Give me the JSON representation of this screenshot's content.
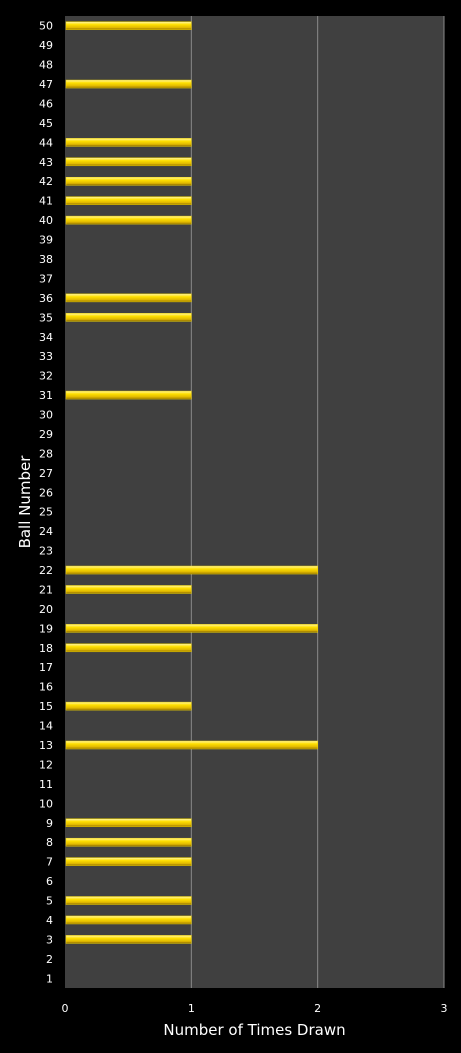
{
  "chart_data": {
    "type": "bar",
    "orientation": "horizontal",
    "xlabel": "Number of Times Drawn",
    "ylabel": "Ball Number",
    "xlim": [
      0,
      3
    ],
    "xticks": [
      "0",
      "1",
      "2",
      "3"
    ],
    "grid": "vertical",
    "legend": "none",
    "colors": {
      "background": "#000000",
      "plot_area": "#404040",
      "bar": "#f2d600",
      "gridline": "#8a8a8a",
      "text": "#ffffff"
    },
    "categories": [
      "1",
      "2",
      "3",
      "4",
      "5",
      "6",
      "7",
      "8",
      "9",
      "10",
      "11",
      "12",
      "13",
      "14",
      "15",
      "16",
      "17",
      "18",
      "19",
      "20",
      "21",
      "22",
      "23",
      "24",
      "25",
      "26",
      "27",
      "28",
      "29",
      "30",
      "31",
      "32",
      "33",
      "34",
      "35",
      "36",
      "37",
      "38",
      "39",
      "40",
      "41",
      "42",
      "43",
      "44",
      "45",
      "46",
      "47",
      "48",
      "49",
      "50"
    ],
    "values": [
      0,
      0,
      1,
      1,
      1,
      0,
      1,
      1,
      1,
      0,
      0,
      0,
      2,
      0,
      1,
      0,
      0,
      1,
      2,
      0,
      1,
      2,
      0,
      0,
      0,
      0,
      0,
      0,
      0,
      0,
      1,
      0,
      0,
      0,
      1,
      1,
      0,
      0,
      0,
      1,
      1,
      1,
      1,
      1,
      0,
      0,
      1,
      0,
      0,
      1
    ]
  }
}
